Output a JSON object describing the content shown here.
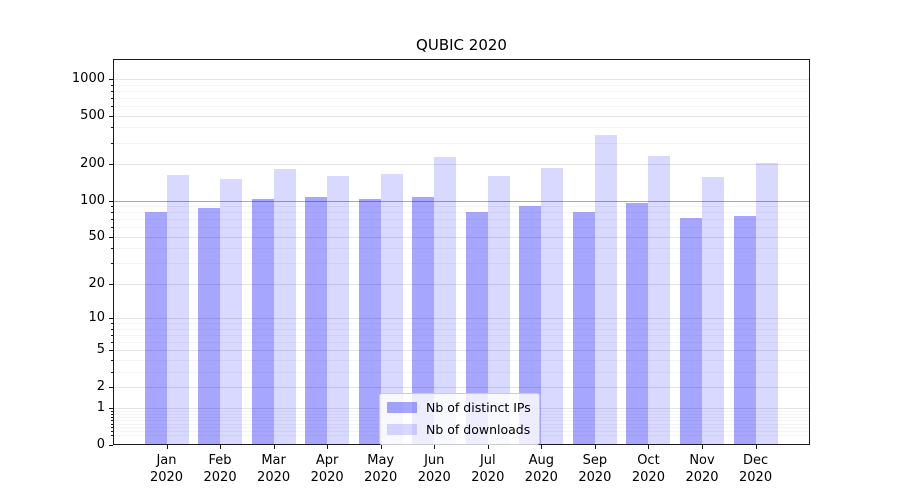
{
  "figure": {
    "title": "QUBIC 2020"
  },
  "legend": {
    "items": [
      {
        "label": "Nb of distinct IPs",
        "color": "#a6a6ff",
        "fill": "rgba(0,0,255,0.35)"
      },
      {
        "label": "Nb of downloads",
        "color": "#d9d9ff",
        "fill": "rgba(0,0,255,0.15)"
      }
    ]
  },
  "chart_data": {
    "type": "bar",
    "title": "QUBIC 2020",
    "categories": [
      "Jan 2020",
      "Feb 2020",
      "Mar 2020",
      "Apr 2020",
      "May 2020",
      "Jun 2020",
      "Jul 2020",
      "Aug 2020",
      "Sep 2020",
      "Oct 2020",
      "Nov 2020",
      "Dec 2020"
    ],
    "series": [
      {
        "name": "Nb of distinct IPs",
        "color": "#a6a6ff",
        "fill": "rgba(0,0,255,0.35)",
        "values": [
          81,
          87,
          103,
          107,
          103,
          107,
          81,
          90,
          80,
          96,
          71,
          74
        ]
      },
      {
        "name": "Nb of downloads",
        "color": "#d9d9ff",
        "fill": "rgba(0,0,255,0.15)",
        "values": [
          163,
          152,
          182,
          161,
          166,
          227,
          161,
          187,
          347,
          231,
          157,
          205
        ]
      }
    ],
    "xlabel": "",
    "ylabel": "",
    "yscale": "log1p",
    "yticks": [
      0,
      1,
      2,
      5,
      10,
      20,
      50,
      100,
      200,
      500,
      1000
    ],
    "ylim": [
      0,
      1460
    ],
    "grid": true,
    "emphasized_gridline": 100,
    "legend_position": "lower center"
  }
}
